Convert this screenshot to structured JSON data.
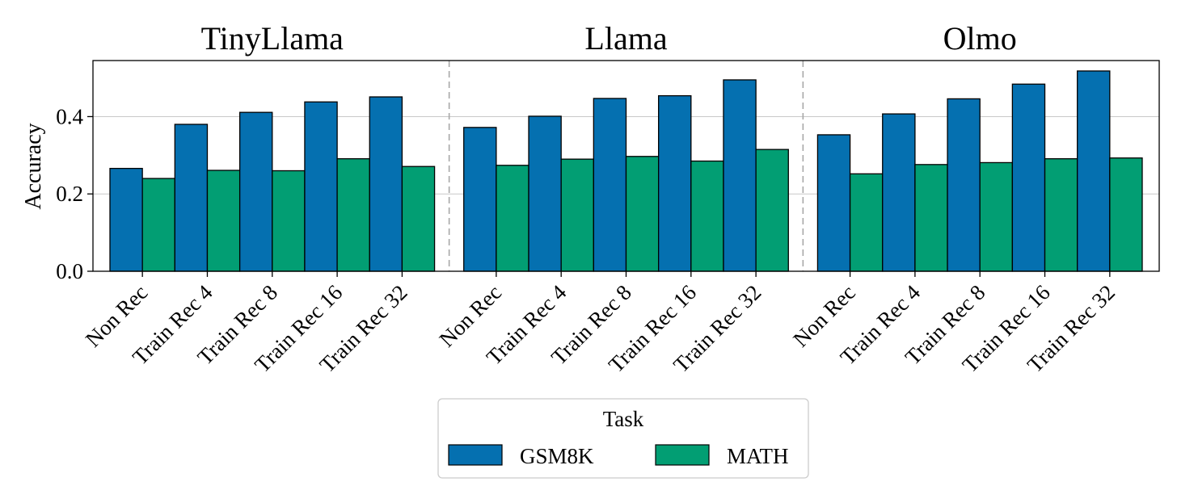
{
  "chart_data": {
    "type": "bar",
    "ylabel": "Accuracy",
    "ylim": [
      0,
      0.545
    ],
    "yticks": [
      0.0,
      0.2,
      0.4
    ],
    "ytick_labels": [
      "0.0",
      "0.2",
      "0.4"
    ],
    "grid": true,
    "categories": [
      "Non Rec",
      "Train Rec 4",
      "Train Rec 8",
      "Train Rec 16",
      "Train Rec 32"
    ],
    "groups": [
      {
        "title": "TinyLlama",
        "series": [
          {
            "name": "GSM8K",
            "values": [
              0.266,
              0.38,
              0.411,
              0.438,
              0.451
            ]
          },
          {
            "name": "MATH",
            "values": [
              0.24,
              0.261,
              0.26,
              0.291,
              0.271
            ]
          }
        ]
      },
      {
        "title": "Llama",
        "series": [
          {
            "name": "GSM8K",
            "values": [
              0.372,
              0.401,
              0.447,
              0.454,
              0.495
            ]
          },
          {
            "name": "MATH",
            "values": [
              0.274,
              0.29,
              0.297,
              0.285,
              0.315
            ]
          }
        ]
      },
      {
        "title": "Olmo",
        "series": [
          {
            "name": "GSM8K",
            "values": [
              0.353,
              0.407,
              0.446,
              0.484,
              0.518
            ]
          },
          {
            "name": "MATH",
            "values": [
              0.252,
              0.276,
              0.281,
              0.291,
              0.293
            ]
          }
        ]
      }
    ],
    "legend": {
      "title": "Task",
      "entries": [
        "GSM8K",
        "MATH"
      ],
      "placement": "bottom-center"
    },
    "colors": {
      "GSM8K": "#0570b0",
      "MATH": "#029e73"
    }
  }
}
